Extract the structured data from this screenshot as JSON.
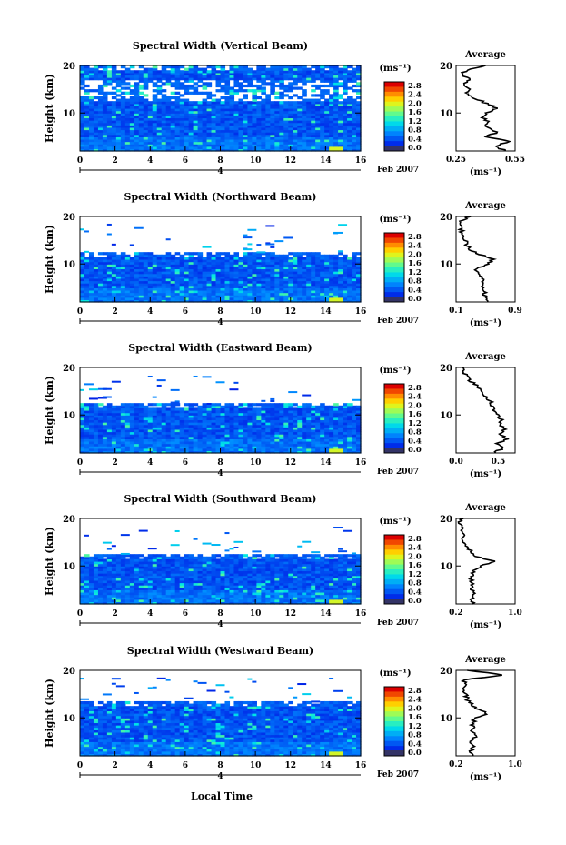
{
  "chart_data": [
    {
      "type": "heatmap",
      "title": "Spectral Width (Vertical Beam)",
      "ylabel": "Height (km)",
      "x_ticks": [
        "0",
        "2",
        "4",
        "6",
        "8",
        "10",
        "12",
        "14",
        "16"
      ],
      "xlim": [
        0,
        16
      ],
      "y_ticks": [
        "20",
        "10"
      ],
      "ylim": [
        2,
        20
      ],
      "date_marker": "4",
      "date_label": "Feb 2007",
      "colorbar": {
        "unit": "(ms⁻¹)",
        "ticks": [
          "2.8",
          "2.4",
          "2.0",
          "1.6",
          "1.2",
          "0.8",
          "0.4",
          "0.0"
        ],
        "range": [
          0,
          2.8
        ]
      },
      "echo_top_km": 20,
      "average": {
        "title": "Average",
        "xlabel": "(ms⁻¹)",
        "x_ticks": [
          "0.25",
          "0.55"
        ],
        "xlim": [
          0.25,
          0.55
        ],
        "y_ticks": [
          "20",
          "10"
        ],
        "height_km": [
          2,
          3,
          4,
          5,
          6,
          7,
          8,
          9,
          10,
          11,
          12,
          13,
          14,
          15,
          16,
          17,
          18,
          19,
          20
        ],
        "values": [
          0.5,
          0.45,
          0.52,
          0.4,
          0.46,
          0.4,
          0.41,
          0.39,
          0.4,
          0.45,
          0.41,
          0.35,
          0.3,
          0.31,
          0.28,
          0.32,
          0.28,
          0.3,
          0.4
        ]
      }
    },
    {
      "type": "heatmap",
      "title": "Spectral Width (Northward Beam)",
      "ylabel": "Height (km)",
      "x_ticks": [
        "0",
        "2",
        "4",
        "6",
        "8",
        "10",
        "12",
        "14",
        "16"
      ],
      "xlim": [
        0,
        16
      ],
      "y_ticks": [
        "20",
        "10"
      ],
      "ylim": [
        2,
        20
      ],
      "date_marker": "4",
      "date_label": "Feb 2007",
      "colorbar": {
        "unit": "(ms⁻¹)",
        "ticks": [
          "2.8",
          "2.4",
          "2.0",
          "1.6",
          "1.2",
          "0.8",
          "0.4",
          "0.0"
        ],
        "range": [
          0,
          2.8
        ]
      },
      "echo_top_km": 12.5,
      "average": {
        "title": "Average",
        "xlabel": "(ms⁻¹)",
        "x_ticks": [
          "0.1",
          "0.9"
        ],
        "xlim": [
          0.1,
          0.9
        ],
        "y_ticks": [
          "20",
          "10"
        ],
        "height_km": [
          2,
          3,
          4,
          5,
          6,
          7,
          8,
          9,
          10,
          11,
          12,
          13,
          14,
          15,
          16,
          17,
          18,
          19,
          20
        ],
        "values": [
          0.52,
          0.48,
          0.5,
          0.46,
          0.44,
          0.45,
          0.4,
          0.38,
          0.55,
          0.6,
          0.42,
          0.3,
          0.25,
          0.22,
          0.2,
          0.17,
          0.15,
          0.14,
          0.3
        ]
      }
    },
    {
      "type": "heatmap",
      "title": "Spectral Width (Eastward Beam)",
      "ylabel": "Height (km)",
      "x_ticks": [
        "0",
        "2",
        "4",
        "6",
        "8",
        "10",
        "12",
        "14",
        "16"
      ],
      "xlim": [
        0,
        16
      ],
      "y_ticks": [
        "20",
        "10"
      ],
      "ylim": [
        2,
        20
      ],
      "date_marker": "4",
      "date_label": "Feb 2007",
      "colorbar": {
        "unit": "(ms⁻¹)",
        "ticks": [
          "2.8",
          "2.4",
          "2.0",
          "1.6",
          "1.2",
          "0.8",
          "0.4",
          "0.0"
        ],
        "range": [
          0,
          2.8
        ]
      },
      "echo_top_km": 12.5,
      "average": {
        "title": "Average",
        "xlabel": "(ms⁻¹)",
        "x_ticks": [
          "0.0",
          "0.5"
        ],
        "xlim": [
          0.0,
          0.7
        ],
        "y_ticks": [
          "20",
          "10"
        ],
        "height_km": [
          2,
          3,
          4,
          5,
          6,
          7,
          8,
          9,
          10,
          11,
          12,
          13,
          14,
          15,
          16,
          17,
          18,
          19,
          20
        ],
        "values": [
          0.45,
          0.55,
          0.5,
          0.6,
          0.52,
          0.58,
          0.5,
          0.55,
          0.48,
          0.45,
          0.42,
          0.4,
          0.33,
          0.3,
          0.25,
          0.18,
          0.14,
          0.1,
          0.08
        ]
      }
    },
    {
      "type": "heatmap",
      "title": "Spectral Width (Southward Beam)",
      "ylabel": "Height (km)",
      "x_ticks": [
        "0",
        "2",
        "4",
        "6",
        "8",
        "10",
        "12",
        "14",
        "16"
      ],
      "xlim": [
        0,
        16
      ],
      "y_ticks": [
        "20",
        "10"
      ],
      "ylim": [
        2,
        20
      ],
      "date_marker": "4",
      "date_label": "Feb 2007",
      "colorbar": {
        "unit": "(ms⁻¹)",
        "ticks": [
          "2.8",
          "2.4",
          "2.0",
          "1.6",
          "1.2",
          "0.8",
          "0.4",
          "0.0"
        ],
        "range": [
          0,
          2.8
        ]
      },
      "echo_top_km": 12.5,
      "average": {
        "title": "Average",
        "xlabel": "(ms⁻¹)",
        "x_ticks": [
          "0.2",
          "1.0"
        ],
        "xlim": [
          0.2,
          1.0
        ],
        "y_ticks": [
          "20",
          "10"
        ],
        "height_km": [
          2,
          3,
          4,
          5,
          6,
          7,
          8,
          9,
          10,
          11,
          12,
          13,
          14,
          15,
          16,
          17,
          18,
          19,
          20
        ],
        "values": [
          0.42,
          0.4,
          0.45,
          0.4,
          0.43,
          0.4,
          0.42,
          0.45,
          0.55,
          0.7,
          0.48,
          0.4,
          0.35,
          0.32,
          0.3,
          0.28,
          0.27,
          0.25,
          0.3
        ]
      }
    },
    {
      "type": "heatmap",
      "title": "Spectral Width (Westward Beam)",
      "ylabel": "Height (km)",
      "x_ticks": [
        "0",
        "2",
        "4",
        "6",
        "8",
        "10",
        "12",
        "14",
        "16"
      ],
      "xlim": [
        0,
        16
      ],
      "y_ticks": [
        "20",
        "10"
      ],
      "ylim": [
        2,
        20
      ],
      "date_marker": "4",
      "date_label": "Feb 2007",
      "colorbar": {
        "unit": "(ms⁻¹)",
        "ticks": [
          "2.8",
          "2.4",
          "2.0",
          "1.6",
          "1.2",
          "0.8",
          "0.4",
          "0.0"
        ],
        "range": [
          0,
          2.8
        ]
      },
      "echo_top_km": 13.5,
      "average": {
        "title": "Average",
        "xlabel": "(ms⁻¹)",
        "x_ticks": [
          "0.2",
          "1.0"
        ],
        "xlim": [
          0.2,
          1.0
        ],
        "y_ticks": [
          "20",
          "10"
        ],
        "height_km": [
          2,
          3,
          4,
          5,
          6,
          7,
          8,
          9,
          10,
          11,
          12,
          13,
          14,
          15,
          16,
          17,
          18,
          19,
          20
        ],
        "values": [
          0.42,
          0.4,
          0.44,
          0.4,
          0.45,
          0.42,
          0.43,
          0.42,
          0.48,
          0.62,
          0.45,
          0.4,
          0.35,
          0.33,
          0.3,
          0.32,
          0.3,
          0.85,
          0.35
        ]
      }
    }
  ],
  "xlabel": "Local Time"
}
